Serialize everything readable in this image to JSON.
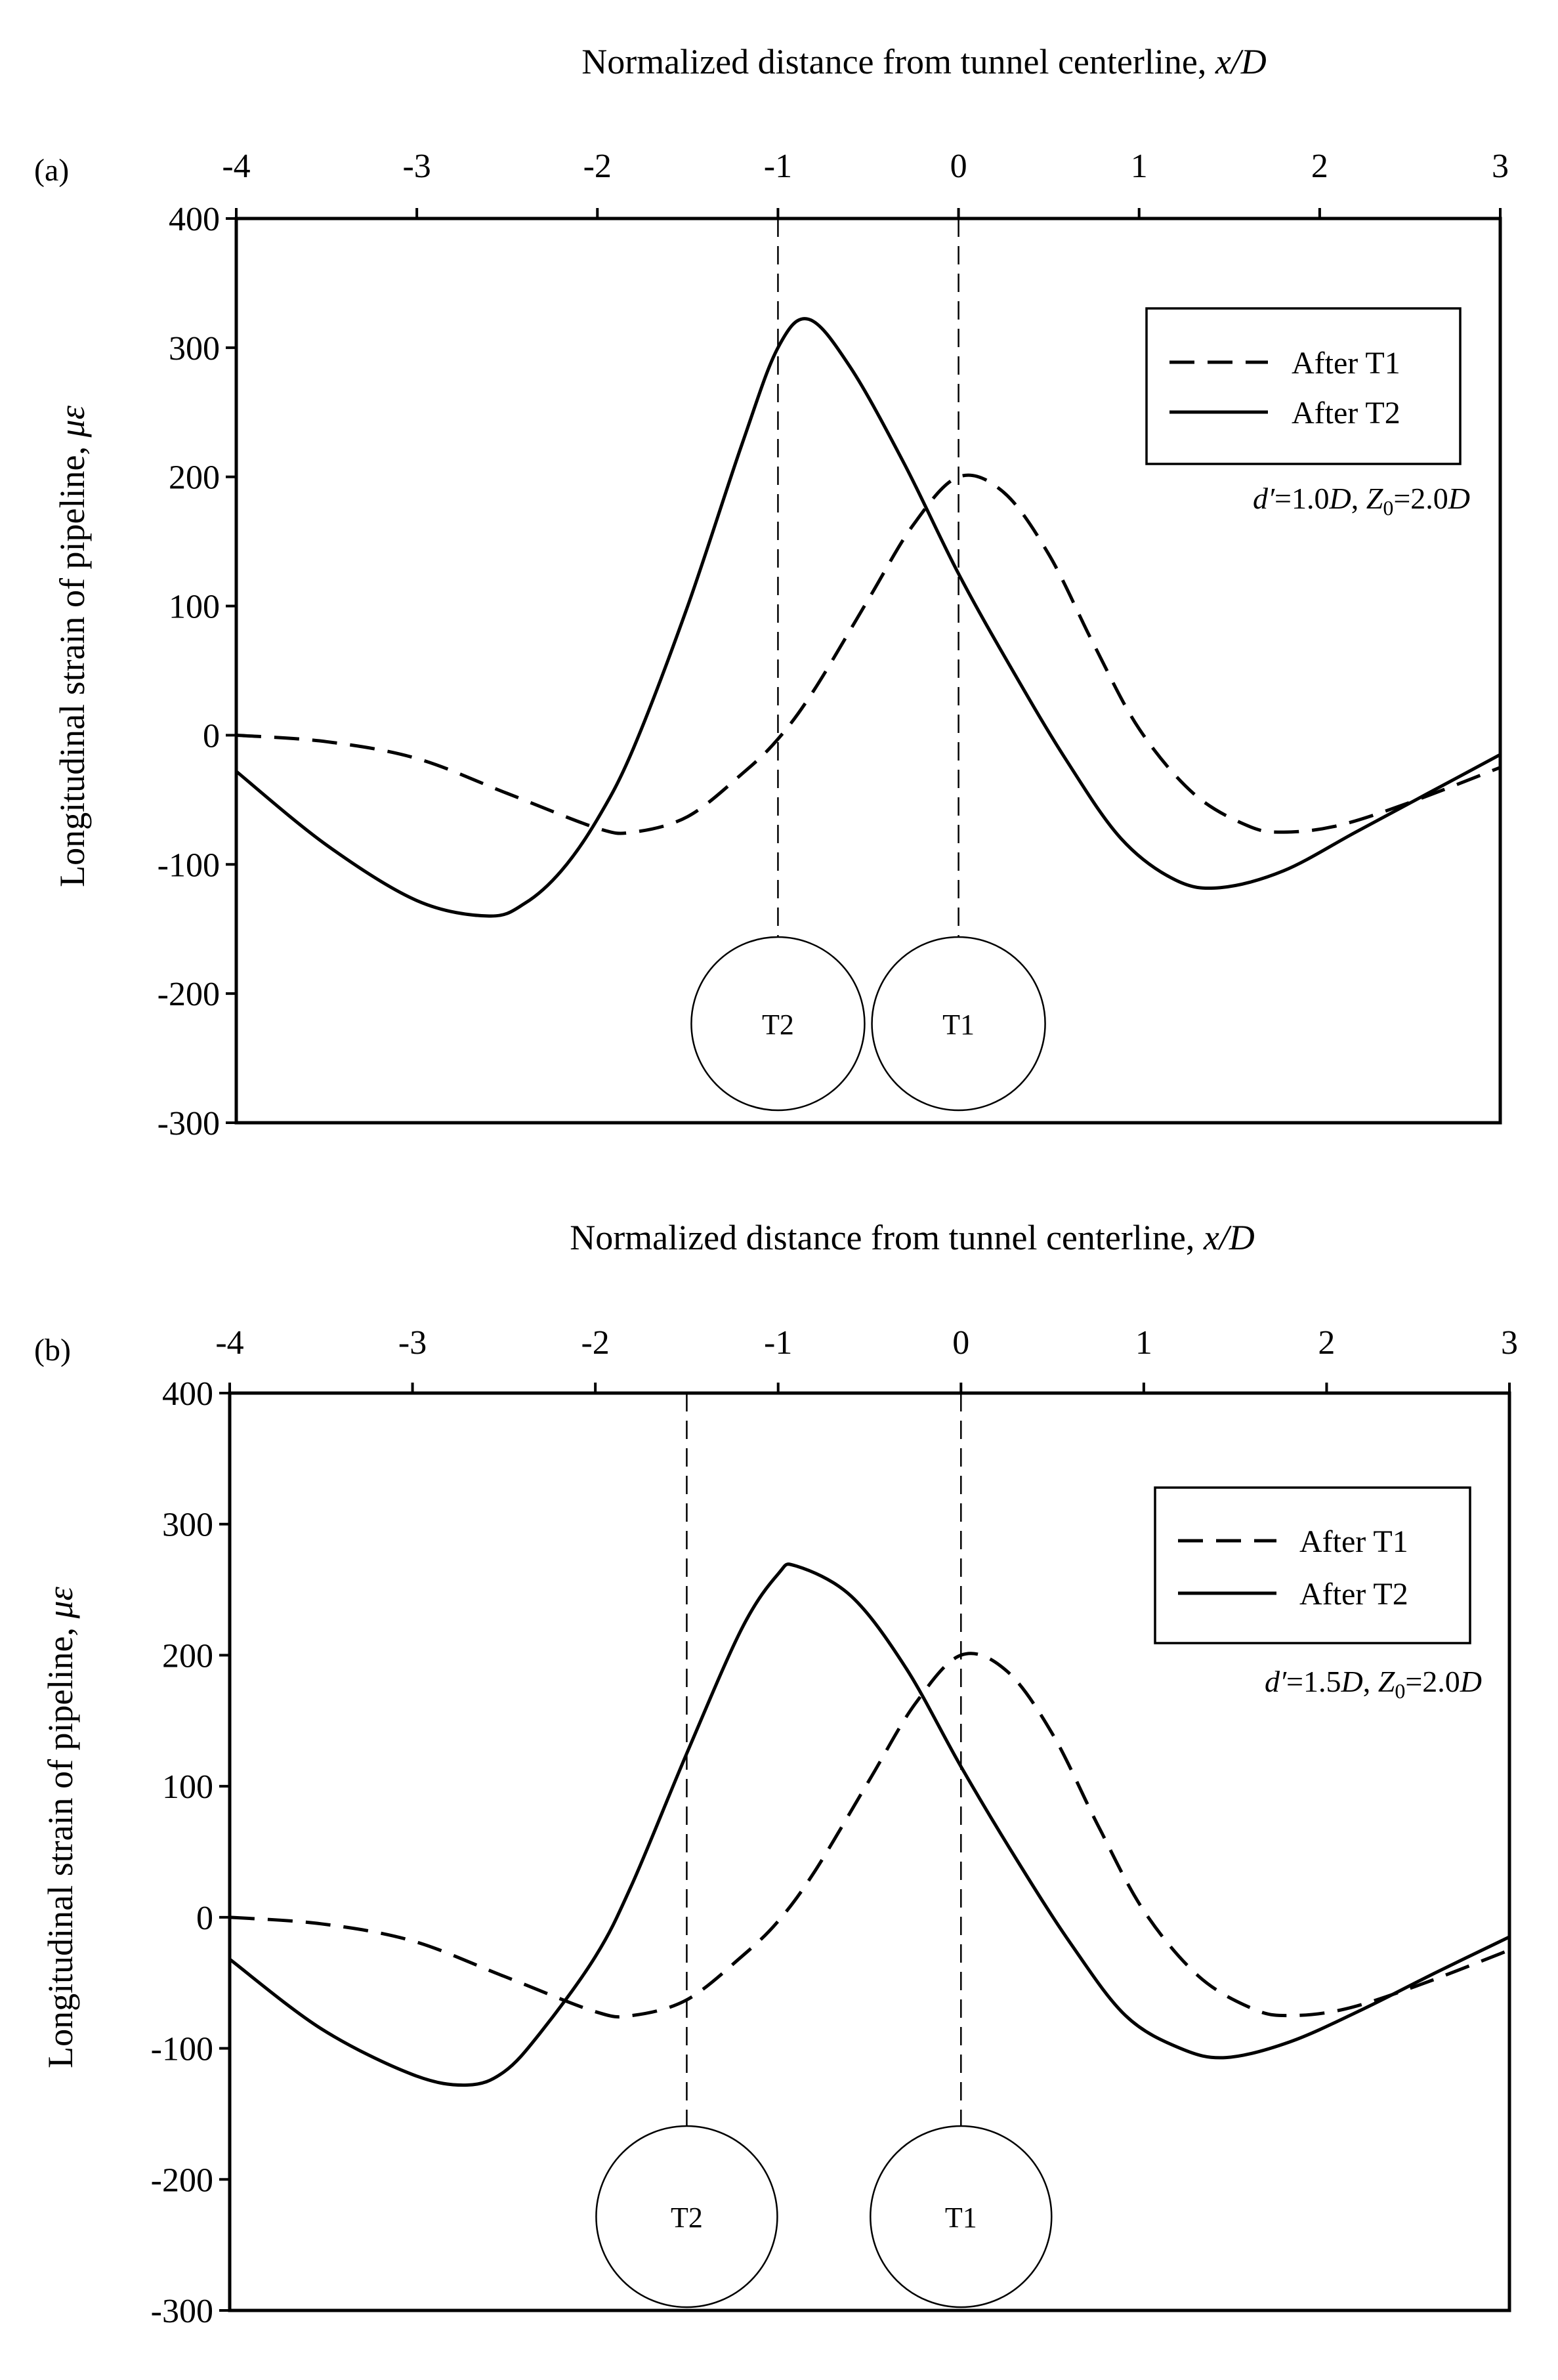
{
  "chart_data": [
    {
      "panel": "(a)",
      "type": "line",
      "xlabel": "Normalized distance from tunnel centerline, x/D",
      "xlabel_main": "Normalized distance from tunnel centerline, ",
      "xlabel_var": "x/D",
      "ylabel": "Longitudinal strain of pipeline, με",
      "ylabel_main": "Longitudinal strain of pipeline, ",
      "ylabel_var": "με",
      "xlim": [
        -4,
        3
      ],
      "ylim": [
        -300,
        400
      ],
      "xticks": [
        "-4",
        "-3",
        "-2",
        "-1",
        "0",
        "1",
        "2",
        "3"
      ],
      "yticks": [
        "400",
        "300",
        "200",
        "100",
        "0",
        "-100",
        "-200",
        "-300"
      ],
      "annotation": "d′=1.0D, Z0=2.0D",
      "annotation_parts": {
        "d": "d′",
        "eq1": "=1.0",
        "D1": "D",
        "sep": ", ",
        "Z": "Z",
        "sub": "0",
        "eq2": "=2.0",
        "D2": "D"
      },
      "legend": [
        "After T1",
        "After T2"
      ],
      "tunnels": [
        {
          "label": "T2",
          "x": -1.0
        },
        {
          "label": "T1",
          "x": 0.0
        }
      ],
      "series": [
        {
          "name": "After T1",
          "style": "dashed",
          "x": [
            -4.0,
            -3.5,
            -3.0,
            -2.5,
            -2.0,
            -1.8,
            -1.5,
            -1.2,
            -1.0,
            -0.8,
            -0.5,
            -0.25,
            0.0,
            0.25,
            0.5,
            0.75,
            1.0,
            1.3,
            1.6,
            1.8,
            2.1,
            2.5,
            3.0
          ],
          "y": [
            0,
            -5,
            -18,
            -45,
            -72,
            -75,
            -63,
            -30,
            -3,
            35,
            105,
            163,
            200,
            188,
            140,
            70,
            5,
            -45,
            -70,
            -75,
            -70,
            -52,
            -25
          ]
        },
        {
          "name": "After T2",
          "style": "solid",
          "x": [
            -4.0,
            -3.5,
            -3.0,
            -2.6,
            -2.4,
            -2.2,
            -2.0,
            -1.8,
            -1.5,
            -1.2,
            -1.0,
            -0.83,
            -0.6,
            -0.3,
            0.0,
            0.3,
            0.6,
            0.9,
            1.2,
            1.45,
            1.8,
            2.2,
            2.6,
            3.0
          ],
          "y": [
            -28,
            -85,
            -128,
            -140,
            -130,
            -105,
            -65,
            -10,
            100,
            225,
            300,
            322,
            285,
            210,
            125,
            50,
            -20,
            -80,
            -112,
            -118,
            -105,
            -75,
            -45,
            -15
          ]
        }
      ]
    },
    {
      "panel": "(b)",
      "type": "line",
      "xlabel": "Normalized distance from tunnel centerline, x/D",
      "xlabel_main": "Normalized distance from tunnel centerline, ",
      "xlabel_var": "x/D",
      "ylabel": "Longitudinal strain of pipeline, με",
      "ylabel_main": "Longitudinal strain of pipeline, ",
      "ylabel_var": "με",
      "xlim": [
        -4,
        3
      ],
      "ylim": [
        -300,
        400
      ],
      "xticks": [
        "-4",
        "-3",
        "-2",
        "-1",
        "0",
        "1",
        "2",
        "3"
      ],
      "yticks": [
        "400",
        "300",
        "200",
        "100",
        "0",
        "-100",
        "-200",
        "-300"
      ],
      "annotation": "d′=1.5D, Z0=2.0D",
      "annotation_parts": {
        "d": "d′",
        "eq1": "=1.5",
        "D1": "D",
        "sep": ", ",
        "Z": "Z",
        "sub": "0",
        "eq2": "=2.0",
        "D2": "D"
      },
      "legend": [
        "After T1",
        "After T2"
      ],
      "tunnels": [
        {
          "label": "T2",
          "x": -1.5
        },
        {
          "label": "T1",
          "x": 0.0
        }
      ],
      "series": [
        {
          "name": "After T1",
          "style": "dashed",
          "x": [
            -4.0,
            -3.5,
            -3.0,
            -2.5,
            -2.0,
            -1.8,
            -1.5,
            -1.2,
            -1.0,
            -0.8,
            -0.5,
            -0.25,
            0.0,
            0.25,
            0.5,
            0.75,
            1.0,
            1.3,
            1.6,
            1.8,
            2.1,
            2.5,
            3.0
          ],
          "y": [
            0,
            -5,
            -18,
            -45,
            -72,
            -75,
            -63,
            -30,
            -3,
            35,
            105,
            163,
            200,
            188,
            140,
            70,
            5,
            -45,
            -70,
            -75,
            -70,
            -52,
            -25
          ]
        },
        {
          "name": "After T2",
          "style": "solid",
          "x": [
            -4.0,
            -3.5,
            -3.0,
            -2.7,
            -2.5,
            -2.3,
            -2.0,
            -1.8,
            -1.5,
            -1.2,
            -1.0,
            -0.9,
            -0.6,
            -0.3,
            0.0,
            0.3,
            0.6,
            0.9,
            1.2,
            1.45,
            1.8,
            2.2,
            2.6,
            3.0
          ],
          "y": [
            -32,
            -85,
            -120,
            -128,
            -118,
            -88,
            -30,
            25,
            125,
            220,
            262,
            268,
            245,
            190,
            115,
            45,
            -20,
            -75,
            -100,
            -107,
            -95,
            -70,
            -42,
            -15
          ]
        }
      ]
    }
  ]
}
